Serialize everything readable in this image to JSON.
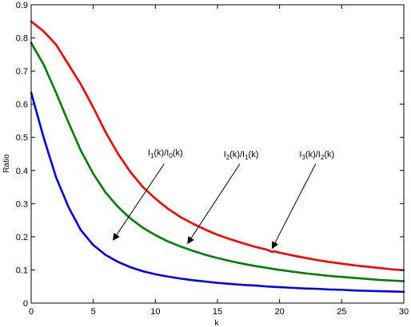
{
  "chart_data": {
    "type": "line",
    "xlabel": "k",
    "ylabel": "Ratio",
    "xlim": [
      0,
      30
    ],
    "ylim": [
      0,
      0.9
    ],
    "x_ticks": [
      0,
      5,
      10,
      15,
      20,
      25,
      30
    ],
    "y_ticks": [
      0,
      0.1,
      0.2,
      0.3,
      0.4,
      0.5,
      0.6,
      0.7,
      0.8,
      0.9
    ],
    "x_tick_labels": [
      "0",
      "5",
      "10",
      "15",
      "20",
      "25",
      "30"
    ],
    "y_tick_labels": [
      "0",
      "0.1",
      "0.2",
      "0.3",
      "0.4",
      "0.5",
      "0.6",
      "0.7",
      "0.8",
      "0.9"
    ],
    "grid": false,
    "legend": "none",
    "series": [
      {
        "color": "#ff0000",
        "x": [
          0,
          1,
          2,
          3,
          4,
          5,
          6,
          7,
          8,
          9,
          10,
          11,
          12,
          13,
          14,
          15,
          16,
          17,
          18,
          19,
          19.4,
          19.6,
          20,
          21,
          22,
          23,
          24,
          25,
          26,
          27,
          28,
          29,
          30
        ],
        "values": [
          0.85,
          0.82,
          0.78,
          0.72,
          0.66,
          0.59,
          0.515,
          0.45,
          0.395,
          0.35,
          0.315,
          0.285,
          0.26,
          0.24,
          0.222,
          0.206,
          0.193,
          0.181,
          0.17,
          0.161,
          0.154,
          0.156,
          0.152,
          0.144,
          0.137,
          0.13,
          0.124,
          0.119,
          0.114,
          0.11,
          0.106,
          0.102,
          0.099
        ]
      },
      {
        "color": "#008000",
        "x": [
          0,
          1,
          2,
          3,
          4,
          5,
          6,
          7,
          8,
          9,
          10,
          11,
          12,
          13,
          14,
          15,
          16,
          17,
          18,
          19,
          20,
          21,
          22,
          23,
          24,
          25,
          26,
          27,
          28,
          29,
          30
        ],
        "values": [
          0.785,
          0.72,
          0.635,
          0.545,
          0.46,
          0.39,
          0.333,
          0.29,
          0.255,
          0.227,
          0.205,
          0.186,
          0.171,
          0.158,
          0.146,
          0.136,
          0.127,
          0.119,
          0.112,
          0.106,
          0.1,
          0.095,
          0.09,
          0.086,
          0.082,
          0.079,
          0.076,
          0.073,
          0.07,
          0.068,
          0.066
        ]
      },
      {
        "color": "#0000ff",
        "x": [
          0,
          1,
          2,
          3,
          4,
          5,
          6,
          7,
          8,
          9,
          10,
          11,
          12,
          13,
          14,
          15,
          16,
          17,
          18,
          19,
          20,
          21,
          22,
          23,
          24,
          25,
          26,
          27,
          28,
          29,
          30
        ],
        "values": [
          0.635,
          0.5,
          0.38,
          0.29,
          0.22,
          0.175,
          0.145,
          0.124,
          0.108,
          0.096,
          0.087,
          0.08,
          0.074,
          0.069,
          0.065,
          0.061,
          0.058,
          0.055,
          0.053,
          0.05,
          0.048,
          0.046,
          0.044,
          0.043,
          0.041,
          0.04,
          0.038,
          0.037,
          0.036,
          0.035,
          0.034
        ]
      }
    ],
    "annotations": [
      {
        "id": "i1-over-i0",
        "color": "#000000",
        "parts": [
          {
            "t": "I",
            "sub": false
          },
          {
            "t": "1",
            "sub": true
          },
          {
            "t": "(k)/I",
            "sub": false
          },
          {
            "t": "0",
            "sub": true
          },
          {
            "t": "(k)",
            "sub": false
          }
        ],
        "text_x": 10.8,
        "text_y": 0.445,
        "arrow_from_x": 10.7,
        "arrow_from_y": 0.42,
        "arrow_to_x": 6.6,
        "arrow_to_y": 0.19
      },
      {
        "id": "i2-over-i1",
        "parts": [
          {
            "t": "I",
            "sub": false
          },
          {
            "t": "2",
            "sub": true
          },
          {
            "t": "(k)/I",
            "sub": false
          },
          {
            "t": "1",
            "sub": true
          },
          {
            "t": "(k)",
            "sub": false
          }
        ],
        "text_x": 16.9,
        "text_y": 0.44,
        "arrow_from_x": 16.8,
        "arrow_from_y": 0.42,
        "arrow_to_x": 12.6,
        "arrow_to_y": 0.18
      },
      {
        "id": "i3-over-i2",
        "parts": [
          {
            "t": "I",
            "sub": false
          },
          {
            "t": "3",
            "sub": true
          },
          {
            "t": "(k)/I",
            "sub": false
          },
          {
            "t": "2",
            "sub": true
          },
          {
            "t": "(k)",
            "sub": false
          }
        ],
        "text_x": 23.0,
        "text_y": 0.44,
        "arrow_from_x": 22.9,
        "arrow_from_y": 0.42,
        "arrow_to_x": 19.4,
        "arrow_to_y": 0.165
      }
    ]
  }
}
